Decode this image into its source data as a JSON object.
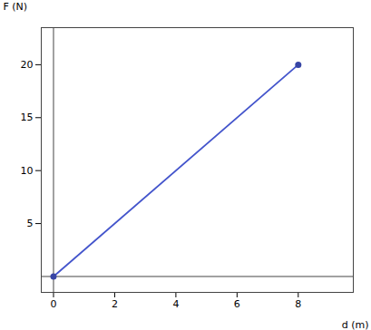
{
  "chart_data": {
    "type": "line",
    "x": [
      0,
      8
    ],
    "values": [
      0,
      20
    ],
    "color": "#4455cc",
    "marker": "o",
    "xlabel": "d (m)",
    "ylabel": "F (N)",
    "xlim": [
      -0.4,
      9.8
    ],
    "xticks": [
      0,
      2,
      4,
      6,
      8
    ],
    "ylim": [
      -1.5,
      23.5
    ],
    "yticks": [
      5,
      10,
      15,
      20
    ],
    "grid": false
  }
}
